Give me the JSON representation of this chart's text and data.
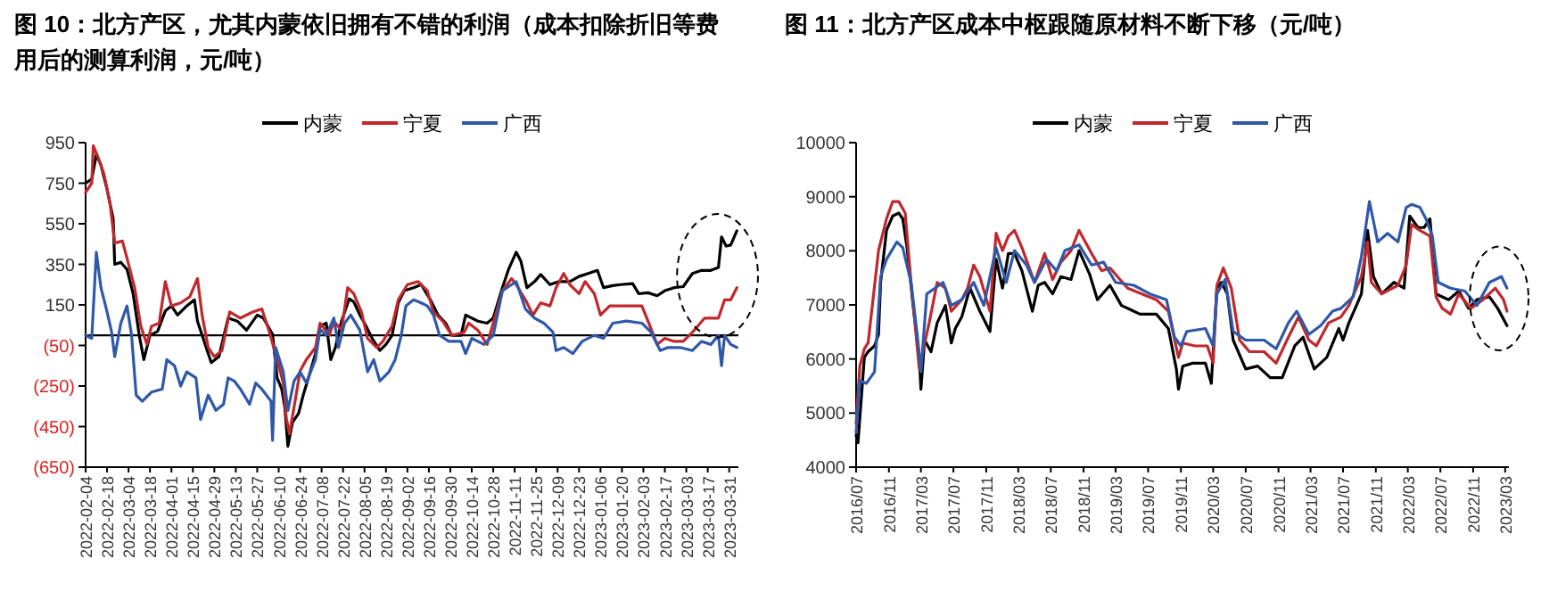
{
  "chart_data": [
    {
      "type": "line",
      "title": "图 10：北方产区，尤其内蒙依旧拥有不错的利润（成本扣除折旧等费用后的测算利润，元/吨）",
      "legend": "top",
      "grid": false,
      "xlim": [
        "2022-02-04",
        "2023-04-06"
      ],
      "xticks": [
        {
          "value": "2022-02-04",
          "label": "2022-02-04"
        },
        {
          "value": "2022-02-18",
          "label": "2022-02-18"
        },
        {
          "value": "2022-03-04",
          "label": "2022-03-04"
        },
        {
          "value": "2022-03-18",
          "label": "2022-03-18"
        },
        {
          "value": "2022-04-01",
          "label": "2022-04-01"
        },
        {
          "value": "2022-04-15",
          "label": "2022-04-15"
        },
        {
          "value": "2022-04-29",
          "label": "2022-04-29"
        },
        {
          "value": "2022-05-13",
          "label": "2022-05-13"
        },
        {
          "value": "2022-05-27",
          "label": "2022-05-27"
        },
        {
          "value": "2022-06-10",
          "label": "2022-06-10"
        },
        {
          "value": "2022-06-24",
          "label": "2022-06-24"
        },
        {
          "value": "2022-07-08",
          "label": "2022-07-08"
        },
        {
          "value": "2022-07-22",
          "label": "2022-07-22"
        },
        {
          "value": "2022-08-05",
          "label": "2022-08-05"
        },
        {
          "value": "2022-08-19",
          "label": "2022-08-19"
        },
        {
          "value": "2022-09-02",
          "label": "2022-09-02"
        },
        {
          "value": "2022-09-16",
          "label": "2022-09-16"
        },
        {
          "value": "2022-09-30",
          "label": "2022-09-30"
        },
        {
          "value": "2022-10-14",
          "label": "2022-10-14"
        },
        {
          "value": "2022-10-28",
          "label": "2022-10-28"
        },
        {
          "value": "2022-11-11",
          "label": "2022-11-11"
        },
        {
          "value": "2022-11-25",
          "label": "2022-11-25"
        },
        {
          "value": "2022-12-09",
          "label": "2022-12-09"
        },
        {
          "value": "2022-12-23",
          "label": "2022-12-23"
        },
        {
          "value": "2023-01-06",
          "label": "2023-01-06"
        },
        {
          "value": "2023-01-20",
          "label": "2023-01-20"
        },
        {
          "value": "2023-02-03",
          "label": "2023-02-03"
        },
        {
          "value": "2023-02-17",
          "label": "2023-02-17"
        },
        {
          "value": "2023-03-03",
          "label": "2023-03-03"
        },
        {
          "value": "2023-03-17",
          "label": "2023-03-17"
        },
        {
          "value": "2023-03-31",
          "label": "2023-03-31"
        }
      ],
      "ylim": [
        -650,
        950
      ],
      "yticks": [
        950,
        750,
        550,
        350,
        150,
        {
          "value": -50,
          "label": "(50)"
        },
        {
          "value": -250,
          "label": "(250)"
        },
        {
          "value": -450,
          "label": "(450)"
        },
        {
          "value": -650,
          "label": "(650)"
        }
      ],
      "ref_lines": [
        {
          "axis": "y",
          "value": 0,
          "color": "#000000"
        }
      ],
      "series": [
        {
          "name": "内蒙",
          "color": "#000000",
          "x": [
            "2022-02-04",
            "2022-02-08",
            "2022-02-10",
            "2022-02-11",
            "2022-02-14",
            "2022-02-18",
            "2022-02-22",
            "2022-02-23",
            "2022-02-27",
            "2022-03-03",
            "2022-03-07",
            "2022-03-11",
            "2022-03-14",
            "2022-03-18",
            "2022-03-23",
            "2022-03-28",
            "2022-04-01",
            "2022-04-05",
            "2022-04-11",
            "2022-04-16",
            "2022-04-18",
            "2022-04-23",
            "2022-04-27",
            "2022-05-02",
            "2022-05-08",
            "2022-05-14",
            "2022-05-20",
            "2022-05-27",
            "2022-05-31",
            "2022-06-06",
            "2022-06-09",
            "2022-06-12",
            "2022-06-14",
            "2022-06-16",
            "2022-06-19",
            "2022-06-23",
            "2022-06-26",
            "2022-06-30",
            "2022-07-04",
            "2022-07-07",
            "2022-07-11",
            "2022-07-14",
            "2022-07-17",
            "2022-07-21",
            "2022-07-26",
            "2022-07-29",
            "2022-08-02",
            "2022-08-05",
            "2022-08-10",
            "2022-08-15",
            "2022-08-19",
            "2022-08-23",
            "2022-08-27",
            "2022-08-31",
            "2022-09-06",
            "2022-09-11",
            "2022-09-17",
            "2022-09-22",
            "2022-09-27",
            "2022-10-01",
            "2022-10-07",
            "2022-10-10",
            "2022-10-18",
            "2022-10-24",
            "2022-10-28",
            "2022-11-03",
            "2022-11-07",
            "2022-11-12",
            "2022-11-15",
            "2022-11-19",
            "2022-11-24",
            "2022-11-28",
            "2022-12-04",
            "2022-12-10",
            "2022-12-17",
            "2022-12-23",
            "2022-12-29",
            "2023-01-04",
            "2023-01-08",
            "2023-01-14",
            "2023-01-19",
            "2023-01-27",
            "2023-01-31",
            "2023-02-06",
            "2023-02-12",
            "2023-02-17",
            "2023-02-23",
            "2023-03-01",
            "2023-03-07",
            "2023-03-13",
            "2023-03-19",
            "2023-03-24",
            "2023-03-26",
            "2023-03-29",
            "2023-04-01",
            "2023-04-05"
          ],
          "values": [
            750,
            770,
            850,
            890,
            840,
            720,
            575,
            350,
            360,
            325,
            205,
            0,
            -120,
            0,
            20,
            120,
            145,
            100,
            145,
            175,
            70,
            -45,
            -135,
            -105,
            85,
            70,
            25,
            100,
            85,
            5,
            -210,
            -265,
            -355,
            -547,
            -430,
            -385,
            -295,
            -195,
            -90,
            45,
            60,
            -120,
            -60,
            70,
            180,
            165,
            100,
            60,
            -15,
            -75,
            -45,
            0,
            160,
            220,
            235,
            250,
            175,
            100,
            60,
            0,
            0,
            100,
            70,
            60,
            85,
            235,
            325,
            410,
            367,
            235,
            265,
            300,
            250,
            265,
            265,
            290,
            305,
            320,
            235,
            245,
            250,
            255,
            205,
            210,
            195,
            220,
            235,
            240,
            305,
            320,
            320,
            335,
            485,
            440,
            445,
            515
          ]
        },
        {
          "name": "宁夏",
          "color": "#c0282d",
          "x": [
            "2022-02-04",
            "2022-02-08",
            "2022-02-09",
            "2022-02-12",
            "2022-02-16",
            "2022-02-20",
            "2022-02-23",
            "2022-02-28",
            "2022-03-03",
            "2022-03-08",
            "2022-03-12",
            "2022-03-16",
            "2022-03-19",
            "2022-03-24",
            "2022-03-28",
            "2022-04-01",
            "2022-04-07",
            "2022-04-13",
            "2022-04-18",
            "2022-04-21",
            "2022-04-25",
            "2022-04-29",
            "2022-05-04",
            "2022-05-09",
            "2022-05-16",
            "2022-05-24",
            "2022-05-30",
            "2022-06-04",
            "2022-06-09",
            "2022-06-13",
            "2022-06-15",
            "2022-06-17",
            "2022-06-20",
            "2022-06-24",
            "2022-06-28",
            "2022-07-04",
            "2022-07-07",
            "2022-07-13",
            "2022-07-16",
            "2022-07-21",
            "2022-07-25",
            "2022-07-29",
            "2022-08-03",
            "2022-08-07",
            "2022-08-13",
            "2022-08-17",
            "2022-08-23",
            "2022-08-27",
            "2022-09-02",
            "2022-09-09",
            "2022-09-15",
            "2022-09-19",
            "2022-09-25",
            "2022-10-01",
            "2022-10-09",
            "2022-10-12",
            "2022-10-18",
            "2022-10-24",
            "2022-10-28",
            "2022-11-03",
            "2022-11-09",
            "2022-11-12",
            "2022-11-18",
            "2022-11-23",
            "2022-11-28",
            "2022-12-04",
            "2022-12-08",
            "2022-12-13",
            "2022-12-17",
            "2022-12-23",
            "2022-12-27",
            "2023-01-02",
            "2023-01-06",
            "2023-01-12",
            "2023-01-23",
            "2023-02-02",
            "2023-02-06",
            "2023-02-12",
            "2023-02-17",
            "2023-02-23",
            "2023-03-01",
            "2023-03-07",
            "2023-03-15",
            "2023-03-24",
            "2023-03-28",
            "2023-04-01",
            "2023-04-05"
          ],
          "values": [
            705,
            750,
            935,
            880,
            795,
            645,
            455,
            465,
            380,
            235,
            45,
            -45,
            45,
            60,
            265,
            145,
            160,
            190,
            280,
            100,
            -60,
            -105,
            -75,
            115,
            85,
            115,
            130,
            15,
            -120,
            -235,
            -410,
            -485,
            -355,
            -175,
            -120,
            -60,
            60,
            0,
            70,
            25,
            235,
            205,
            115,
            -15,
            -60,
            -30,
            45,
            175,
            250,
            265,
            220,
            115,
            70,
            0,
            15,
            60,
            25,
            -45,
            60,
            220,
            280,
            250,
            175,
            100,
            160,
            145,
            235,
            305,
            250,
            205,
            265,
            205,
            100,
            145,
            145,
            145,
            70,
            -45,
            -15,
            -30,
            -30,
            15,
            85,
            85,
            175,
            175,
            235
          ]
        },
        {
          "name": "广西",
          "color": "#3058a8",
          "x": [
            "2022-02-04",
            "2022-02-08",
            "2022-02-11",
            "2022-02-14",
            "2022-02-18",
            "2022-02-21",
            "2022-02-23",
            "2022-02-27",
            "2022-03-03",
            "2022-03-06",
            "2022-03-09",
            "2022-03-13",
            "2022-03-19",
            "2022-03-26",
            "2022-03-29",
            "2022-04-03",
            "2022-04-07",
            "2022-04-11",
            "2022-04-17",
            "2022-04-20",
            "2022-04-25",
            "2022-04-30",
            "2022-05-05",
            "2022-05-08",
            "2022-05-12",
            "2022-05-16",
            "2022-05-22",
            "2022-05-26",
            "2022-05-30",
            "2022-06-02",
            "2022-06-05",
            "2022-06-06",
            "2022-06-08",
            "2022-06-13",
            "2022-06-16",
            "2022-06-20",
            "2022-06-24",
            "2022-06-28",
            "2022-07-04",
            "2022-07-07",
            "2022-07-11",
            "2022-07-16",
            "2022-07-19",
            "2022-07-23",
            "2022-07-27",
            "2022-08-02",
            "2022-08-07",
            "2022-08-11",
            "2022-08-15",
            "2022-08-21",
            "2022-08-25",
            "2022-08-29",
            "2022-09-01",
            "2022-09-06",
            "2022-09-11",
            "2022-09-15",
            "2022-09-19",
            "2022-09-23",
            "2022-09-29",
            "2022-10-07",
            "2022-10-10",
            "2022-10-14",
            "2022-10-22",
            "2022-10-28",
            "2022-11-03",
            "2022-11-09",
            "2022-11-12",
            "2022-11-18",
            "2022-11-24",
            "2022-11-30",
            "2022-12-06",
            "2022-12-08",
            "2022-12-13",
            "2022-12-19",
            "2022-12-25",
            "2023-01-02",
            "2023-01-08",
            "2023-01-14",
            "2023-01-23",
            "2023-02-02",
            "2023-02-08",
            "2023-02-14",
            "2023-02-19",
            "2023-02-27",
            "2023-03-07",
            "2023-03-13",
            "2023-03-19",
            "2023-03-24",
            "2023-03-26",
            "2023-03-28",
            "2023-04-01",
            "2023-04-05"
          ],
          "values": [
            0,
            -15,
            410,
            235,
            115,
            15,
            -105,
            60,
            145,
            0,
            -295,
            -325,
            -280,
            -265,
            -120,
            -150,
            -250,
            -180,
            -210,
            -415,
            -295,
            -370,
            -340,
            -210,
            -225,
            -265,
            -340,
            -235,
            -265,
            -295,
            -325,
            -518,
            -60,
            -180,
            -370,
            -225,
            -180,
            -235,
            -120,
            30,
            0,
            85,
            -60,
            60,
            100,
            25,
            -180,
            -120,
            -225,
            -180,
            -120,
            0,
            145,
            175,
            160,
            145,
            100,
            0,
            -30,
            -30,
            -90,
            -15,
            -45,
            0,
            220,
            250,
            265,
            130,
            85,
            60,
            15,
            -75,
            -60,
            -90,
            -30,
            0,
            -15,
            60,
            70,
            60,
            15,
            -75,
            -60,
            -60,
            -75,
            -30,
            -45,
            0,
            -150,
            0,
            -45,
            -60
          ]
        }
      ]
    },
    {
      "type": "line",
      "title": "图 11：北方产区成本中枢跟随原材料不断下移（元/吨）",
      "legend": "top",
      "grid": false,
      "xlim": [
        "2016-07-01",
        "2023-03-15"
      ],
      "xticks": [
        {
          "value": "2016-07",
          "label": "2016/07"
        },
        {
          "value": "2016-11",
          "label": "2016/11"
        },
        {
          "value": "2017-03",
          "label": "2017/03"
        },
        {
          "value": "2017-07",
          "label": "2017/07"
        },
        {
          "value": "2017-11",
          "label": "2017/11"
        },
        {
          "value": "2018-03",
          "label": "2018/03"
        },
        {
          "value": "2018-07",
          "label": "2018/07"
        },
        {
          "value": "2018-11",
          "label": "2018/11"
        },
        {
          "value": "2019-03",
          "label": "2019/03"
        },
        {
          "value": "2019-07",
          "label": "2019/07"
        },
        {
          "value": "2019-11",
          "label": "2019/11"
        },
        {
          "value": "2020-03",
          "label": "2020/03"
        },
        {
          "value": "2020-07",
          "label": "2020/07"
        },
        {
          "value": "2020-11",
          "label": "2020/11"
        },
        {
          "value": "2021-03",
          "label": "2021/03"
        },
        {
          "value": "2021-07",
          "label": "2021/07"
        },
        {
          "value": "2021-11",
          "label": "2021/11"
        },
        {
          "value": "2022-03",
          "label": "2022/03"
        },
        {
          "value": "2022-07",
          "label": "2022/07"
        },
        {
          "value": "2022-11",
          "label": "2022/11"
        },
        {
          "value": "2023-03",
          "label": "2023/03"
        }
      ],
      "ylim": [
        4000,
        10000
      ],
      "yticks": [
        4000,
        5000,
        6000,
        7000,
        8000,
        9000,
        10000
      ],
      "series": [
        {
          "name": "内蒙",
          "color": "#000000",
          "x": [
            "2016-07-01",
            "2016-07-08",
            "2016-08-01",
            "2016-08-15",
            "2016-09-08",
            "2016-09-23",
            "2016-10-01",
            "2016-10-23",
            "2016-11-15",
            "2016-12-08",
            "2016-12-23",
            "2017-01-08",
            "2017-02-01",
            "2017-02-23",
            "2017-03-01",
            "2017-03-15",
            "2017-04-08",
            "2017-05-01",
            "2017-06-01",
            "2017-06-23",
            "2017-07-08",
            "2017-08-01",
            "2017-09-01",
            "2017-10-08",
            "2017-11-15",
            "2017-12-08",
            "2018-01-01",
            "2018-01-23",
            "2018-02-15",
            "2018-03-15",
            "2018-04-23",
            "2018-05-15",
            "2018-06-08",
            "2018-07-08",
            "2018-08-08",
            "2018-09-15",
            "2018-10-15",
            "2018-11-23",
            "2018-12-23",
            "2019-02-08",
            "2019-03-23",
            "2019-06-01",
            "2019-08-01",
            "2019-09-15",
            "2019-10-15",
            "2019-10-23",
            "2019-11-08",
            "2019-12-15",
            "2020-02-01",
            "2020-02-23",
            "2020-03-15",
            "2020-04-01",
            "2020-04-23",
            "2020-05-15",
            "2020-07-01",
            "2020-08-15",
            "2020-10-01",
            "2020-11-15",
            "2021-01-01",
            "2021-02-01",
            "2021-03-15",
            "2021-05-01",
            "2021-06-15",
            "2021-07-01",
            "2021-07-23",
            "2021-09-08",
            "2021-10-01",
            "2021-10-23",
            "2021-11-23",
            "2022-01-08",
            "2022-02-15",
            "2022-03-08",
            "2022-04-08",
            "2022-05-01",
            "2022-05-23",
            "2022-06-15",
            "2022-08-01",
            "2022-09-08",
            "2022-10-15",
            "2022-11-15",
            "2023-01-01",
            "2023-02-01",
            "2023-03-08"
          ],
          "values": [
            4587,
            4450,
            6029,
            6135,
            6242,
            6456,
            7416,
            8377,
            8644,
            8698,
            8591,
            8057,
            6936,
            6029,
            5441,
            6349,
            6135,
            6669,
            6989,
            6296,
            6563,
            6776,
            7310,
            6883,
            6509,
            7843,
            7310,
            7950,
            7950,
            7630,
            6883,
            7363,
            7416,
            7203,
            7523,
            7470,
            8004,
            7576,
            7096,
            7363,
            6989,
            6829,
            6829,
            6563,
            5815,
            5441,
            5868,
            5922,
            5922,
            5548,
            7310,
            7416,
            7203,
            6349,
            5815,
            5868,
            5655,
            5655,
            6242,
            6402,
            5815,
            6029,
            6563,
            6349,
            6669,
            7203,
            8377,
            7523,
            7203,
            7416,
            7310,
            8644,
            8430,
            8430,
            8591,
            7203,
            7096,
            7256,
            6936,
            7096,
            7150,
            6936,
            6616
          ]
        },
        {
          "name": "宁夏",
          "color": "#c0282d",
          "x": [
            "2016-07-01",
            "2016-07-15",
            "2016-08-01",
            "2016-08-15",
            "2016-09-23",
            "2016-10-23",
            "2016-11-15",
            "2016-12-08",
            "2017-01-01",
            "2017-01-23",
            "2017-02-23",
            "2017-03-08",
            "2017-04-01",
            "2017-05-01",
            "2017-06-01",
            "2017-06-23",
            "2017-08-01",
            "2017-08-23",
            "2017-09-15",
            "2017-10-08",
            "2017-11-15",
            "2017-12-08",
            "2018-01-01",
            "2018-01-23",
            "2018-02-15",
            "2018-03-15",
            "2018-05-01",
            "2018-06-08",
            "2018-07-08",
            "2018-08-08",
            "2018-09-15",
            "2018-10-15",
            "2018-12-01",
            "2019-01-08",
            "2019-02-08",
            "2019-04-15",
            "2019-06-08",
            "2019-08-01",
            "2019-09-15",
            "2019-10-23",
            "2019-11-08",
            "2019-12-23",
            "2020-02-08",
            "2020-03-01",
            "2020-03-15",
            "2020-04-08",
            "2020-05-08",
            "2020-06-08",
            "2020-07-15",
            "2020-09-08",
            "2020-10-23",
            "2020-12-08",
            "2021-01-15",
            "2021-02-23",
            "2021-03-23",
            "2021-05-08",
            "2021-06-23",
            "2021-07-23",
            "2021-09-08",
            "2021-10-01",
            "2021-10-15",
            "2021-11-23",
            "2022-01-23",
            "2022-02-23",
            "2022-03-15",
            "2022-04-15",
            "2022-05-23",
            "2022-06-15",
            "2022-07-08",
            "2022-08-08",
            "2022-09-08",
            "2022-10-23",
            "2022-12-08",
            "2023-01-23",
            "2023-02-23",
            "2023-03-08"
          ],
          "values": [
            4801,
            5868,
            6189,
            6296,
            8004,
            8591,
            8911,
            8911,
            8698,
            7416,
            5815,
            6135,
            6669,
            7416,
            7310,
            6883,
            7096,
            7310,
            7737,
            7523,
            6883,
            8324,
            8004,
            8271,
            8377,
            8057,
            7416,
            7950,
            7470,
            7790,
            8004,
            8377,
            7950,
            7630,
            7683,
            7310,
            7203,
            7096,
            6883,
            6029,
            6296,
            6242,
            6242,
            5922,
            7363,
            7683,
            7310,
            6349,
            6135,
            6135,
            5922,
            6402,
            6776,
            6349,
            6242,
            6669,
            6776,
            6989,
            7523,
            8164,
            7416,
            7203,
            7363,
            7737,
            8484,
            8377,
            8271,
            7150,
            6936,
            6829,
            7203,
            6936,
            7096,
            7310,
            7096,
            6883
          ]
        },
        {
          "name": "广西",
          "color": "#3058a8",
          "x": [
            "2016-07-01",
            "2016-07-15",
            "2016-08-08",
            "2016-09-08",
            "2016-10-01",
            "2016-10-23",
            "2016-12-01",
            "2016-12-23",
            "2017-01-23",
            "2017-02-15",
            "2017-03-01",
            "2017-03-23",
            "2017-04-23",
            "2017-05-23",
            "2017-06-23",
            "2017-08-01",
            "2017-09-15",
            "2017-10-23",
            "2017-12-08",
            "2018-01-15",
            "2018-02-15",
            "2018-04-01",
            "2018-05-01",
            "2018-06-15",
            "2018-07-23",
            "2018-08-23",
            "2018-10-15",
            "2018-12-01",
            "2019-01-15",
            "2019-03-01",
            "2019-05-08",
            "2019-07-08",
            "2019-09-08",
            "2019-10-08",
            "2019-11-01",
            "2019-11-23",
            "2020-02-01",
            "2020-03-01",
            "2020-03-15",
            "2020-04-15",
            "2020-05-15",
            "2020-07-01",
            "2020-09-08",
            "2020-10-23",
            "2020-12-08",
            "2021-01-08",
            "2021-02-23",
            "2021-04-08",
            "2021-05-23",
            "2021-06-23",
            "2021-08-08",
            "2021-09-08",
            "2021-10-08",
            "2021-11-08",
            "2021-12-15",
            "2022-01-23",
            "2022-02-23",
            "2022-03-15",
            "2022-04-15",
            "2022-05-08",
            "2022-06-01",
            "2022-06-23",
            "2022-08-08",
            "2022-10-01",
            "2022-11-15",
            "2023-01-01",
            "2023-02-15",
            "2023-03-08"
          ],
          "values": [
            4641,
            5602,
            5548,
            5762,
            7523,
            7843,
            8164,
            8057,
            7416,
            6456,
            5762,
            7203,
            7310,
            7416,
            6989,
            7096,
            7416,
            6989,
            8057,
            7416,
            8004,
            7737,
            7416,
            7843,
            7630,
            8004,
            8110,
            7737,
            7790,
            7416,
            7363,
            7203,
            7096,
            6402,
            6242,
            6509,
            6563,
            6242,
            7203,
            7470,
            6509,
            6349,
            6349,
            6189,
            6669,
            6883,
            6456,
            6616,
            6883,
            6936,
            7150,
            7897,
            8911,
            8164,
            8324,
            8164,
            8804,
            8857,
            8804,
            8591,
            8271,
            7416,
            7310,
            7256,
            6989,
            7416,
            7523,
            7310
          ]
        }
      ]
    }
  ]
}
